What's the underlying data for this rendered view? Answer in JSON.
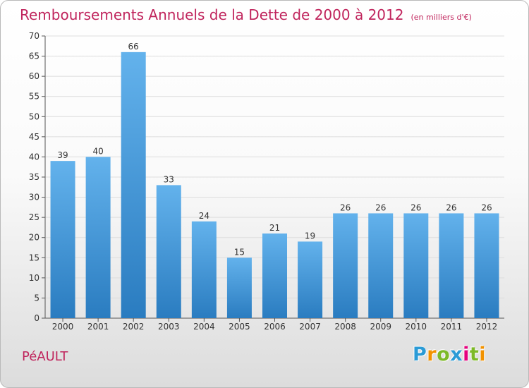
{
  "header": {
    "title": "Remboursements Annuels de la Dette de 2000 à 2012",
    "unit": "(en milliers d'€)"
  },
  "footer": {
    "commune": "PéAULT",
    "brand_letters": [
      "P",
      "r",
      "o",
      "x",
      "i",
      "t",
      "i"
    ]
  },
  "colors": {
    "title": "#c0245c",
    "bar_top": "#63b2ec",
    "bar_bottom": "#2a7cc0",
    "axis": "#555555",
    "grid": "#dddddd"
  },
  "chart_data": {
    "type": "bar",
    "title": "Remboursements Annuels de la Dette de 2000 à 2012",
    "subtitle": "(en milliers d'€)",
    "xlabel": "",
    "ylabel": "",
    "categories": [
      "2000",
      "2001",
      "2002",
      "2003",
      "2004",
      "2005",
      "2006",
      "2007",
      "2008",
      "2009",
      "2010",
      "2011",
      "2012"
    ],
    "values": [
      39,
      40,
      66,
      33,
      24,
      15,
      21,
      19,
      26,
      26,
      26,
      26,
      26
    ],
    "ylim": [
      0,
      70
    ],
    "yticks": [
      0,
      5,
      10,
      15,
      20,
      25,
      30,
      35,
      40,
      45,
      50,
      55,
      60,
      65,
      70
    ],
    "data_labels": true,
    "grid": true,
    "legend": "none"
  }
}
